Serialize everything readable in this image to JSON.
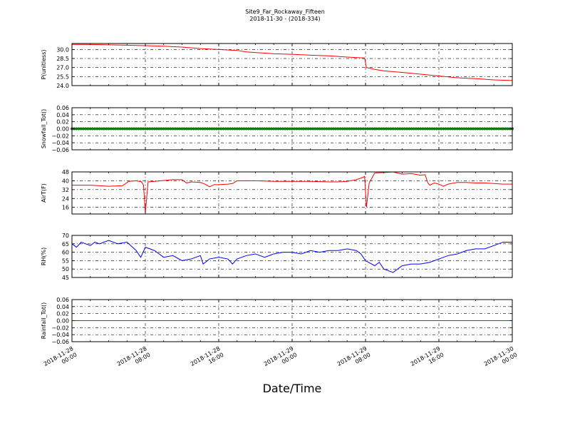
{
  "figure": {
    "title_line1": "Site9_Far_Rockaway_Fifteen",
    "title_line2": "2018-11-30 - (2018-334)",
    "xlabel": "Date/Time",
    "x_ticks": [
      {
        "line1": "2018-11-28",
        "line2": "00:00"
      },
      {
        "line1": "2018-11-28",
        "line2": "08:00"
      },
      {
        "line1": "2018-11-28",
        "line2": "16:00"
      },
      {
        "line1": "2018-11-29",
        "line2": "00:00"
      },
      {
        "line1": "2018-11-29",
        "line2": "08:00"
      },
      {
        "line1": "2018-11-29",
        "line2": "16:00"
      },
      {
        "line1": "2018-11-30",
        "line2": "00:00"
      }
    ]
  },
  "chart_data": [
    {
      "type": "line",
      "ylabel": "P(unitless)",
      "ylim": [
        24.0,
        31.0
      ],
      "yticks": [
        24.0,
        25.5,
        27.0,
        28.5,
        30.0
      ],
      "ytick_labels": [
        "24.0",
        "25.5",
        "27.0",
        "28.5",
        "30.0"
      ],
      "grid": true,
      "color": "#ff0000",
      "series": [
        {
          "x_hours": [
            0,
            2,
            4,
            6,
            8,
            10,
            12,
            14,
            16,
            18,
            19,
            20,
            22,
            24,
            26,
            28,
            30,
            31.9,
            32.1,
            33,
            34,
            36,
            38,
            40,
            42,
            44,
            46,
            48
          ],
          "y": [
            30.85,
            30.83,
            30.78,
            30.72,
            30.65,
            30.55,
            30.4,
            30.15,
            30.0,
            29.85,
            29.6,
            29.5,
            29.3,
            29.2,
            29.05,
            28.95,
            28.75,
            28.6,
            27.0,
            26.7,
            26.45,
            26.2,
            25.9,
            25.6,
            25.3,
            25.15,
            24.95,
            24.85
          ]
        }
      ]
    },
    {
      "type": "scatter",
      "ylabel": "Snowfall_Tot()",
      "ylim": [
        -0.06,
        0.06
      ],
      "yticks": [
        -0.06,
        -0.04,
        -0.02,
        0.0,
        0.02,
        0.04,
        0.06
      ],
      "ytick_labels": [
        "−0.06",
        "−0.04",
        "−0.02",
        "0.00",
        "0.02",
        "0.04",
        "0.06"
      ],
      "grid": true,
      "color": "#008000",
      "series": [
        {
          "x_hours": [
            0,
            48
          ],
          "y": [
            0.0,
            0.0
          ]
        }
      ]
    },
    {
      "type": "line",
      "ylabel": "AirT(F)",
      "ylim": [
        10,
        48
      ],
      "yticks": [
        16,
        24,
        32,
        40,
        48
      ],
      "ytick_labels": [
        "16",
        "24",
        "32",
        "40",
        "48"
      ],
      "grid": true,
      "color": "#ff0000",
      "series": [
        {
          "x_hours": [
            0,
            2,
            4,
            5.5,
            6.2,
            7,
            7.6,
            7.8,
            8.0,
            8.3,
            9,
            11,
            12,
            12.5,
            13,
            14,
            14.5,
            15,
            15.5,
            16,
            17,
            17.5,
            18,
            19,
            20,
            22,
            24,
            26,
            28,
            29,
            30,
            31,
            31.7,
            31.9,
            32.1,
            32.4,
            33,
            34,
            35,
            36,
            37,
            38,
            38.5,
            38.8,
            39,
            39.5,
            40,
            40.5,
            41,
            42,
            43,
            44,
            45,
            46,
            47,
            48
          ],
          "y": [
            36,
            36,
            35,
            35.5,
            39.5,
            40,
            39,
            36,
            11,
            39,
            39.5,
            41,
            41,
            38,
            39,
            38.5,
            37,
            34.5,
            36.5,
            36.5,
            37,
            37.5,
            40,
            40,
            40,
            39.5,
            39.5,
            39.5,
            39,
            39,
            39.5,
            41,
            43,
            44,
            16,
            38,
            47,
            47.5,
            48,
            46,
            46.5,
            45,
            45.5,
            38,
            36,
            38,
            37,
            35,
            37,
            38.5,
            38.5,
            38,
            38,
            37.5,
            37,
            37
          ]
        }
      ]
    },
    {
      "type": "line",
      "ylabel": "RH(%)",
      "ylim": [
        45,
        70
      ],
      "yticks": [
        45,
        50,
        55,
        60,
        65,
        70
      ],
      "ytick_labels": [
        "45",
        "50",
        "55",
        "60",
        "65",
        "70"
      ],
      "grid": true,
      "color": "#0000ff",
      "series": [
        {
          "x_hours": [
            0,
            0.5,
            1,
            2,
            2.5,
            3,
            4,
            5,
            6,
            7,
            7.5,
            8,
            8.5,
            9,
            10,
            11,
            12,
            13,
            14,
            14.3,
            15,
            16,
            17,
            17.5,
            18,
            19,
            20,
            21,
            22,
            23,
            24,
            25,
            26,
            27,
            28,
            29,
            30,
            31,
            31.5,
            32,
            33,
            33.5,
            34,
            35,
            35.5,
            36,
            37,
            38,
            39,
            40,
            41,
            42,
            43,
            44,
            45,
            46,
            47,
            48
          ],
          "y": [
            65,
            63,
            66,
            64,
            66,
            65,
            67,
            65,
            66,
            61,
            57,
            63,
            62,
            61,
            57,
            58,
            55,
            56,
            58,
            53,
            56,
            57,
            56,
            53,
            56,
            58,
            59,
            57,
            59,
            60,
            60,
            59,
            61,
            60,
            61,
            61,
            62,
            61,
            59,
            55,
            52,
            54,
            50,
            48,
            50,
            52,
            53,
            53,
            54,
            56,
            58,
            59,
            61,
            62,
            62,
            64,
            66,
            66
          ]
        }
      ]
    },
    {
      "type": "line",
      "ylabel": "Rainfall_Tot()",
      "ylim": [
        -0.06,
        0.06
      ],
      "yticks": [
        -0.06,
        -0.04,
        -0.02,
        0.0,
        0.02,
        0.04,
        0.06
      ],
      "ytick_labels": [
        "−0.06",
        "−0.04",
        "−0.02",
        "0.00",
        "0.02",
        "0.04",
        "0.06"
      ],
      "grid": true,
      "color": "#ff0000",
      "series": [
        {
          "x_hours": [
            0,
            48
          ],
          "y": [
            0.0,
            0.0
          ]
        }
      ]
    }
  ]
}
